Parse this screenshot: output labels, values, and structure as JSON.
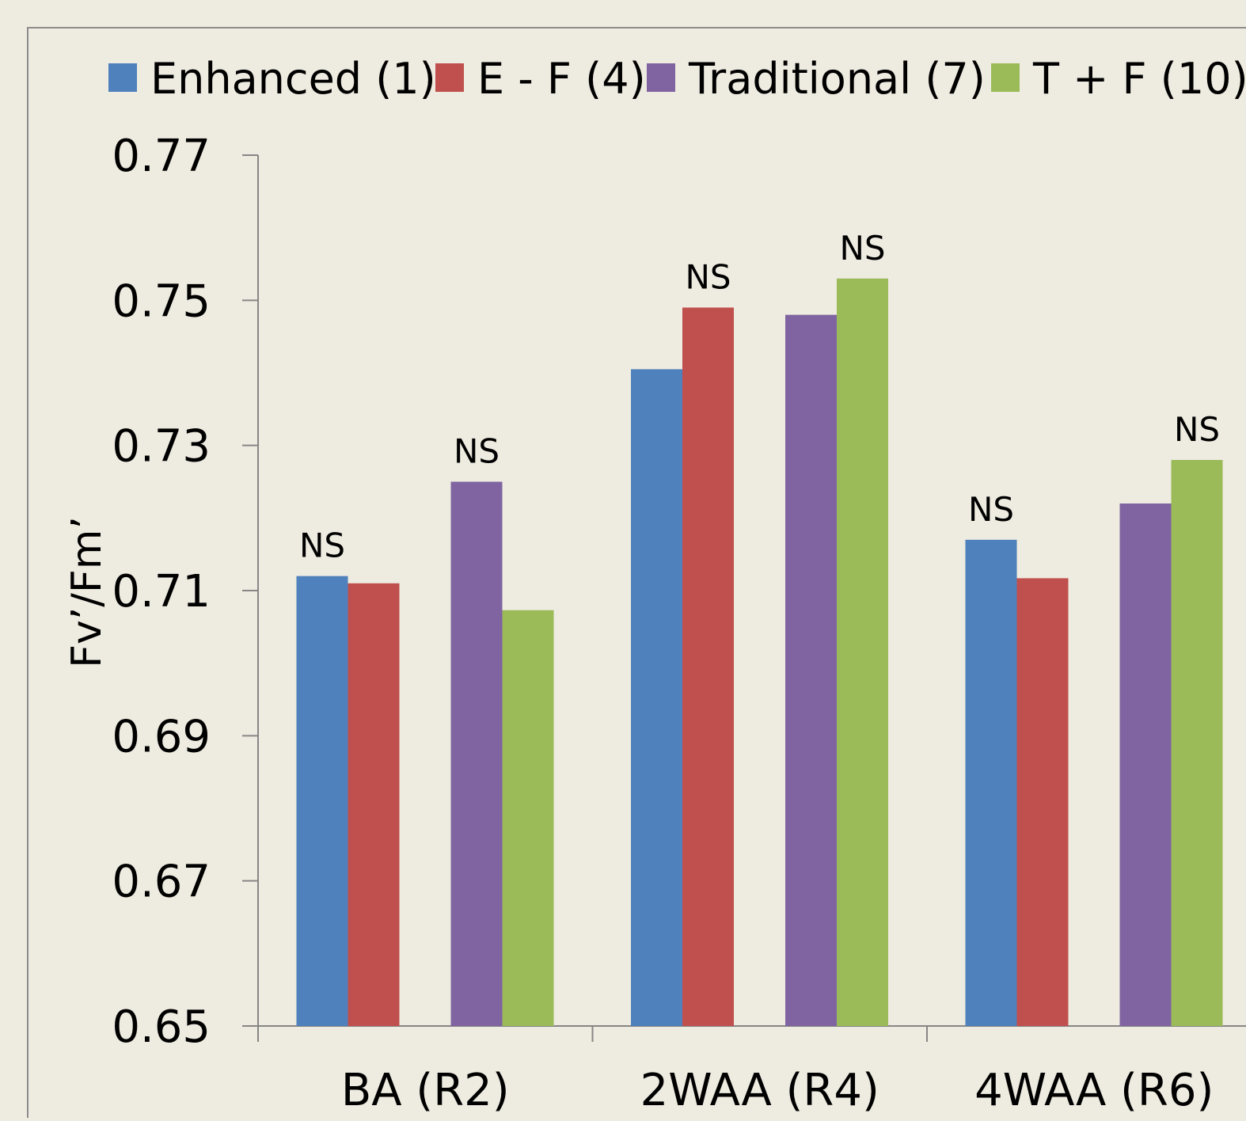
{
  "chart_data": {
    "type": "bar",
    "title": "",
    "xlabel": "",
    "ylabel": "Fv’/Fm’",
    "ylim": [
      0.65,
      0.77
    ],
    "yticks": [
      "0.65",
      "0.67",
      "0.69",
      "0.71",
      "0.73",
      "0.75",
      "0.77"
    ],
    "grid": false,
    "legend_position": "top",
    "categories": [
      "BA (R2)",
      "2WAA (R4)",
      "4WAA (R6)"
    ],
    "series": [
      {
        "name": "Enhanced (1)",
        "color": "#4f81bd",
        "values": [
          0.712,
          0.7405,
          0.717
        ]
      },
      {
        "name": "E - F (4)",
        "color": "#c0504d",
        "values": [
          0.711,
          0.749,
          0.7117
        ]
      },
      {
        "name": "Traditional (7)",
        "color": "#8064a2",
        "values": [
          0.725,
          0.748,
          0.722
        ]
      },
      {
        "name": "T + F (10)",
        "color": "#9bbb59",
        "values": [
          0.7073,
          0.753,
          0.728
        ]
      }
    ],
    "annotations": [
      {
        "text": "NS",
        "category": 0,
        "series": 0
      },
      {
        "text": "NS",
        "category": 0,
        "series": 2
      },
      {
        "text": "NS",
        "category": 1,
        "series": 1
      },
      {
        "text": "NS",
        "category": 1,
        "series": 3
      },
      {
        "text": "NS",
        "category": 2,
        "series": 0
      },
      {
        "text": "NS",
        "category": 2,
        "series": 3
      }
    ]
  }
}
